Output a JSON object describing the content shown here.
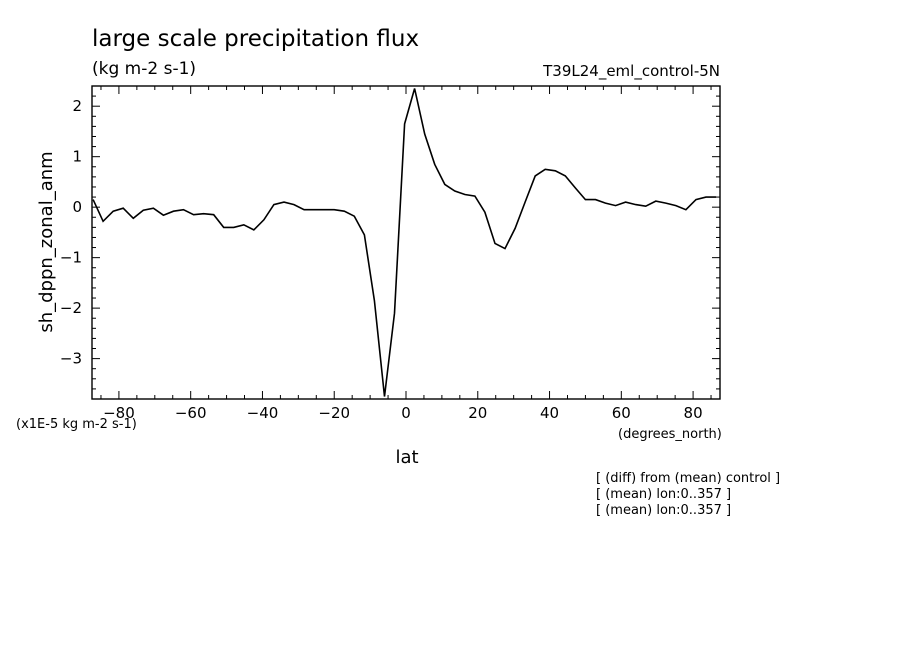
{
  "chart_data": {
    "type": "line",
    "title": "large scale precipitation flux",
    "subtitle": "(kg m-2 s-1)",
    "run_label": "T39L24_eml_control-5N",
    "xlabel": "lat",
    "xunits": "(degrees_north)",
    "ylabel": "sh_dppn_zonal_anm",
    "yscale": "(x1E-5 kg m-2 s-1)",
    "xlim": [
      -87.5,
      87.5
    ],
    "ylim": [
      -3.8,
      2.4
    ],
    "x_ticks": [
      -80,
      -60,
      -40,
      -20,
      0,
      20,
      40,
      60,
      80
    ],
    "y_ticks": [
      -3,
      -2,
      -1,
      0,
      1,
      2
    ],
    "notes": [
      "[ (diff) from (mean) control ]",
      "[ (mean) lon:0..357 ]",
      "[ (mean) lon:0..357 ]"
    ],
    "series": [
      {
        "x": [
          -87.2,
          -84.4,
          -81.6,
          -78.8,
          -76.0,
          -73.2,
          -70.4,
          -67.6,
          -64.8,
          -62.0,
          -59.2,
          -56.4,
          -53.6,
          -50.8,
          -48.0,
          -45.2,
          -42.4,
          -39.6,
          -36.8,
          -34.0,
          -31.2,
          -28.4,
          -25.6,
          -22.8,
          -20.0,
          -17.2,
          -14.4,
          -11.6,
          -8.8,
          -6.0,
          -3.2,
          -0.4,
          2.4,
          5.2,
          8.0,
          10.8,
          13.6,
          16.4,
          19.2,
          22.0,
          24.8,
          27.6,
          30.4,
          33.2,
          36.0,
          38.8,
          41.6,
          44.4,
          47.2,
          50.0,
          52.8,
          55.6,
          58.4,
          61.2,
          64.0,
          66.8,
          69.6,
          72.4,
          75.2,
          78.0,
          80.8,
          83.6,
          86.4
        ],
        "y": [
          0.15,
          -0.28,
          -0.08,
          -0.02,
          -0.22,
          -0.06,
          -0.02,
          -0.16,
          -0.08,
          -0.05,
          -0.15,
          -0.13,
          -0.15,
          -0.4,
          -0.4,
          -0.35,
          -0.45,
          -0.25,
          0.05,
          0.1,
          0.05,
          -0.05,
          -0.05,
          -0.05,
          -0.05,
          -0.08,
          -0.18,
          -0.55,
          -1.85,
          -3.75,
          -2.1,
          1.65,
          2.35,
          1.45,
          0.85,
          0.45,
          0.32,
          0.25,
          0.22,
          -0.1,
          -0.72,
          -0.82,
          -0.42,
          0.1,
          0.62,
          0.75,
          0.72,
          0.62,
          0.38,
          0.15,
          0.15,
          0.08,
          0.03,
          0.1,
          0.05,
          0.02,
          0.12,
          0.08,
          0.03,
          -0.05,
          0.15,
          0.2,
          0.2
        ]
      }
    ]
  }
}
